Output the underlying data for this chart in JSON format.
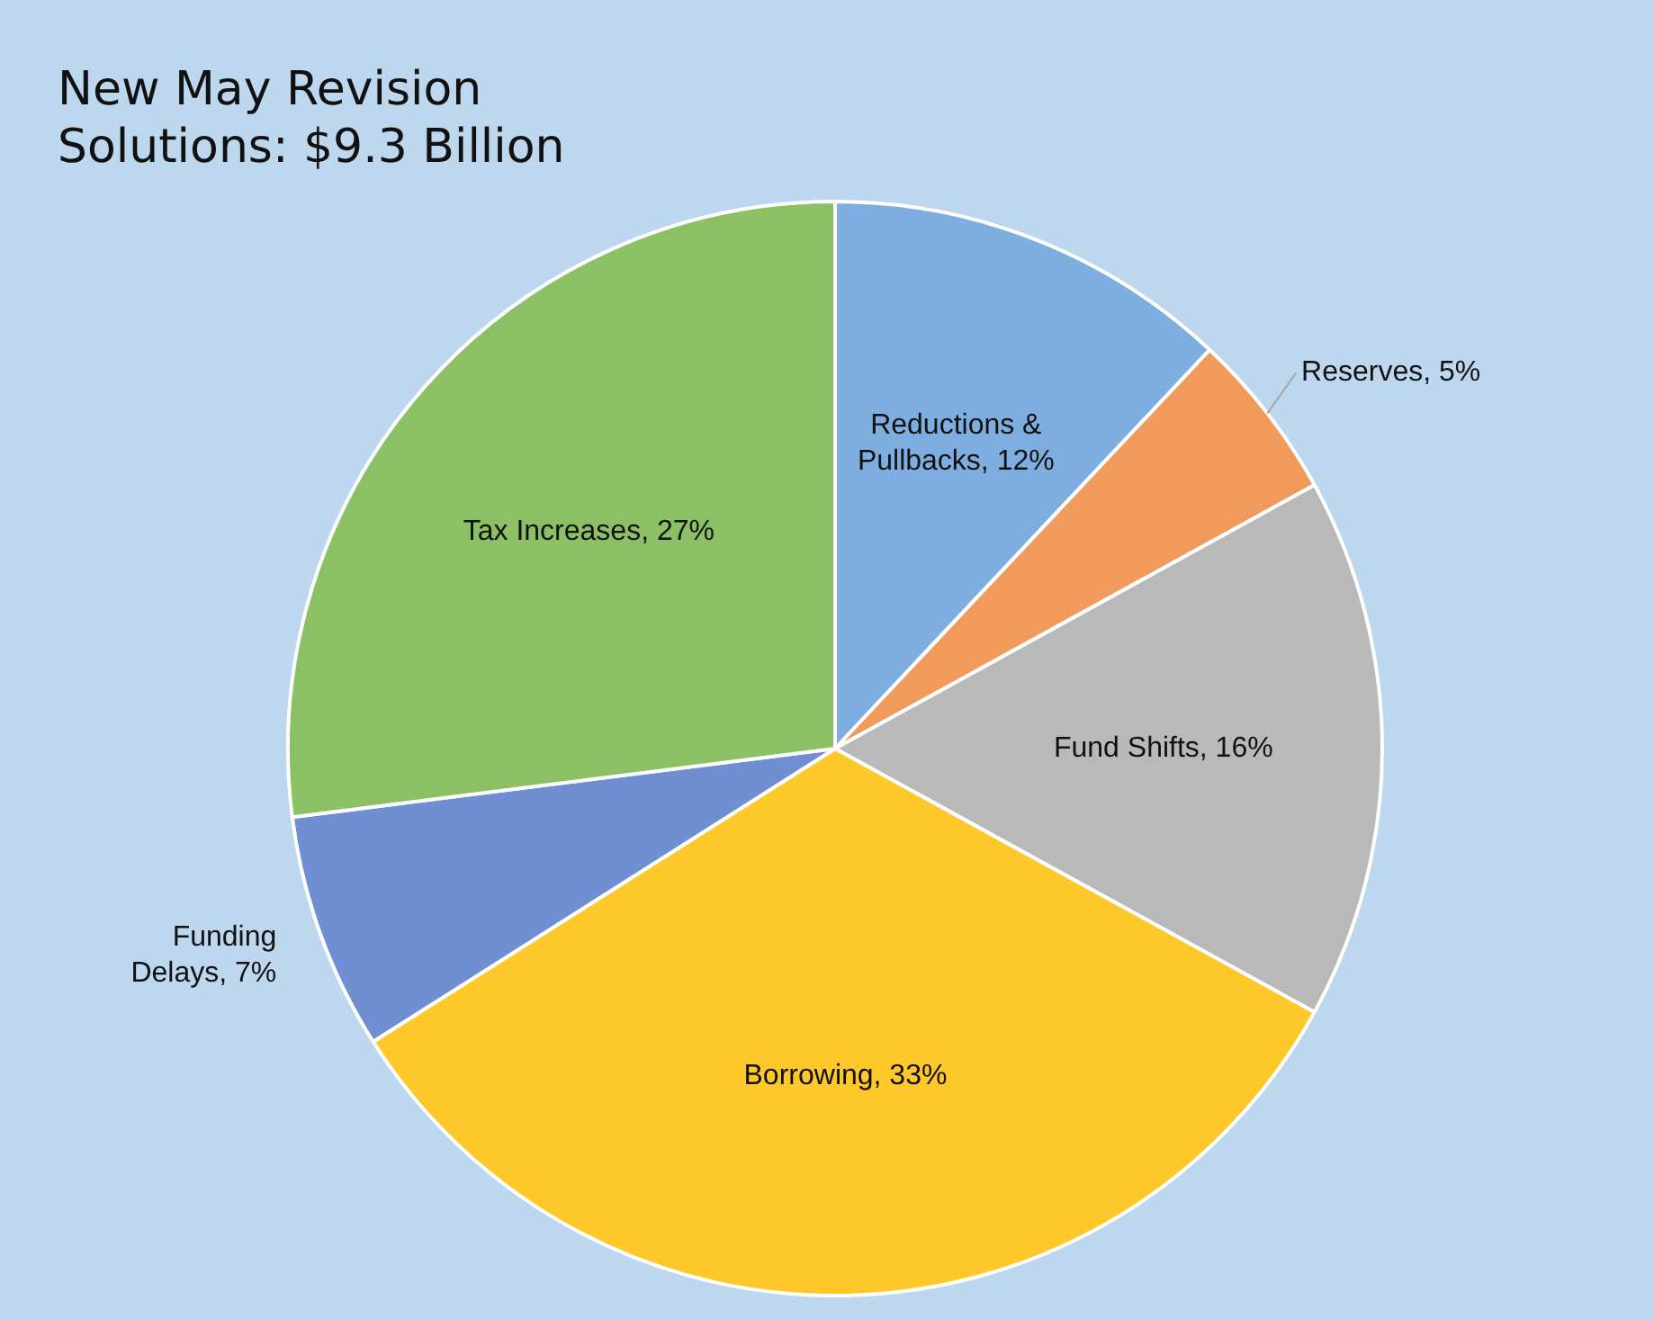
{
  "chart_data": {
    "type": "pie",
    "title": "New May Revision Solutions: $9.3 Billion",
    "categories": [
      "Reductions & Pullbacks",
      "Reserves",
      "Fund Shifts",
      "Borrowing",
      "Funding Delays",
      "Tax Increases"
    ],
    "values": [
      12,
      5,
      16,
      33,
      7,
      27
    ],
    "colors": [
      "#7eaedf",
      "#f09a5c",
      "#b9b9b9",
      "#fec82a",
      "#6f8fd2",
      "#8cc064"
    ],
    "value_labels": [
      "12%",
      "5%",
      "16%",
      "33%",
      "7%",
      "27%"
    ],
    "legend": false
  }
}
